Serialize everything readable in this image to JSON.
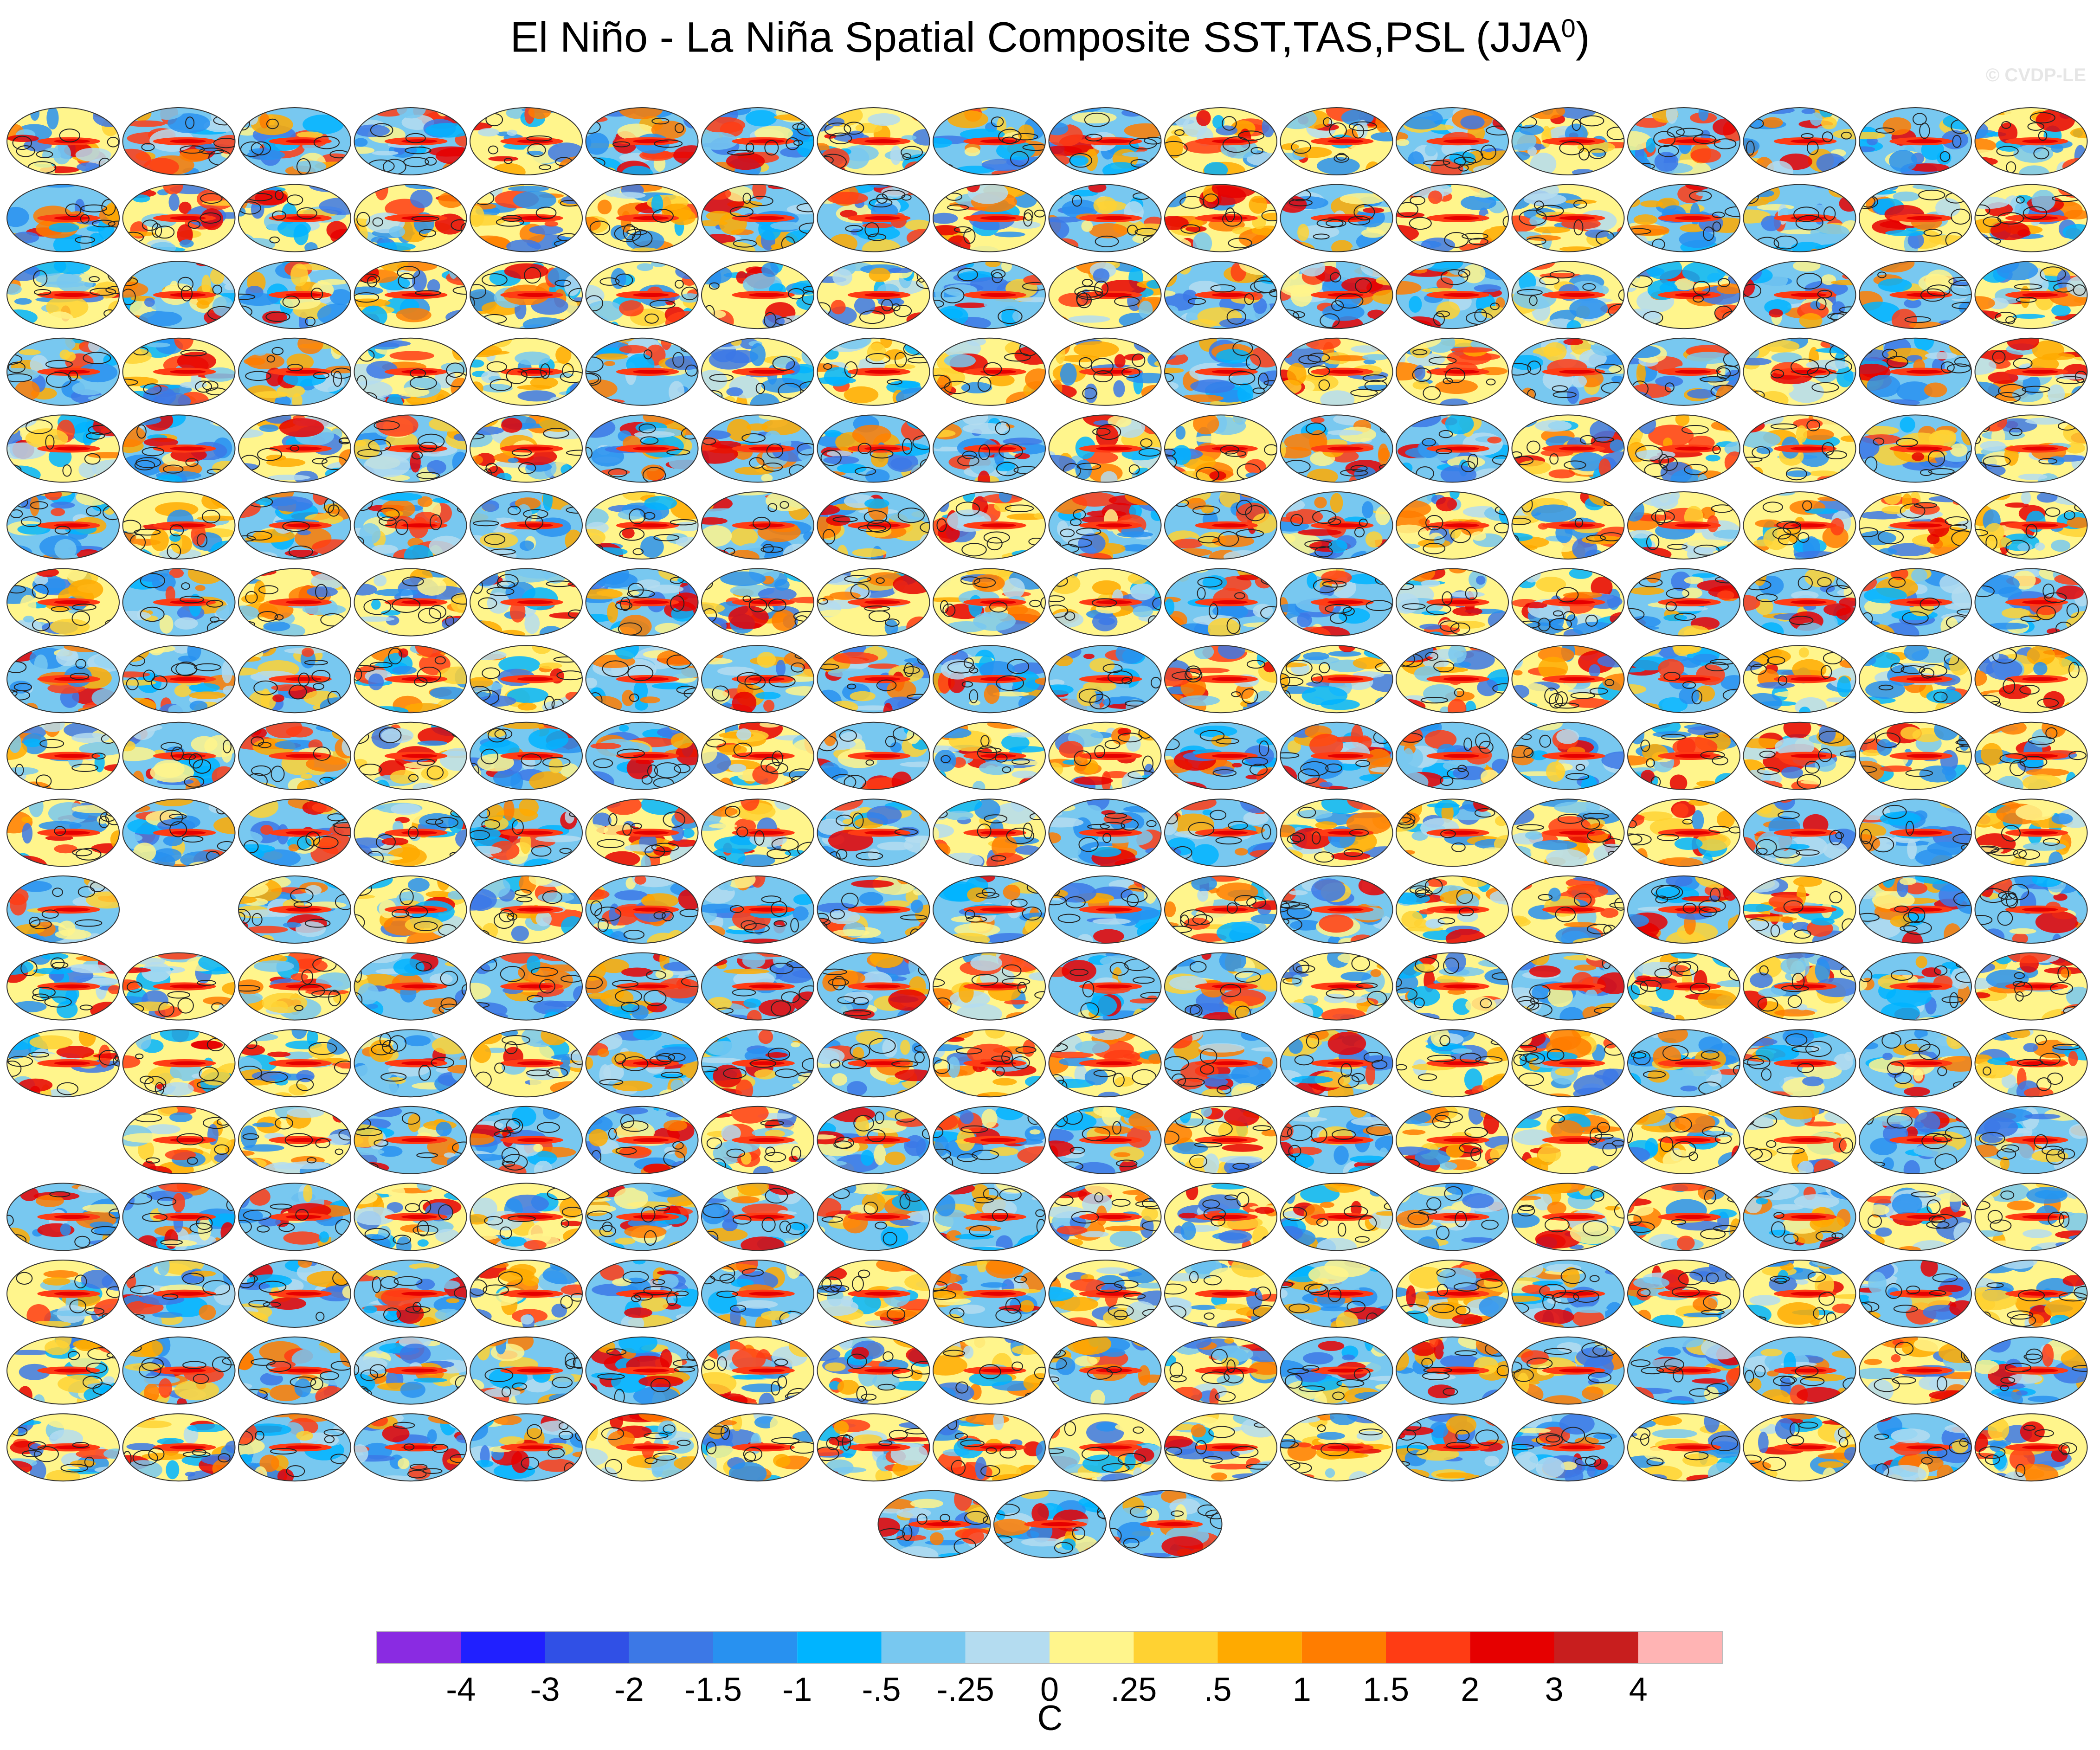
{
  "title_main": "El Niño - La Niña Spatial Composite SST,TAS,PSL (JJA",
  "title_sup": "0",
  "title_close": ")",
  "watermark": "© CVDP-LE",
  "chart_data": {
    "type": "heatmap",
    "description_source": "grid of global map panels",
    "panel_rows": [
      {
        "row": 1,
        "panels": 18
      },
      {
        "row": 2,
        "panels": 18
      },
      {
        "row": 3,
        "panels": 18
      },
      {
        "row": 4,
        "panels": 18
      },
      {
        "row": 5,
        "panels": 18
      },
      {
        "row": 6,
        "panels": 18
      },
      {
        "row": 7,
        "panels": 18
      },
      {
        "row": 8,
        "panels": 18
      },
      {
        "row": 9,
        "panels": 18
      },
      {
        "row": 10,
        "panels": 18
      },
      {
        "row": 11,
        "panels": 17,
        "skip_columns": [
          2
        ]
      },
      {
        "row": 12,
        "panels": 18
      },
      {
        "row": 13,
        "panels": 18
      },
      {
        "row": 14,
        "panels": 17,
        "skip_columns": [
          1
        ]
      },
      {
        "row": 15,
        "panels": 18
      },
      {
        "row": 16,
        "panels": 18
      },
      {
        "row": 17,
        "panels": 18
      },
      {
        "row": 18,
        "panels": 18
      },
      {
        "row": 19,
        "panels": 3,
        "centered": true
      }
    ],
    "colorbar": {
      "labels": [
        "-4",
        "-3",
        "-2",
        "-1.5",
        "-1",
        "-.5",
        "-.25",
        "0",
        ".25",
        ".5",
        "1",
        "1.5",
        "2",
        "3",
        "4"
      ],
      "colors": [
        "#8a2be2",
        "#2020ff",
        "#3050e6",
        "#3c78e6",
        "#2891f0",
        "#00b4ff",
        "#78c8f0",
        "#b4dcf0",
        "#fff58c",
        "#ffd232",
        "#ffaa00",
        "#ff7d00",
        "#ff3c14",
        "#e60000",
        "#c81e1e",
        "#ffb4b4"
      ],
      "unit": "C"
    }
  }
}
